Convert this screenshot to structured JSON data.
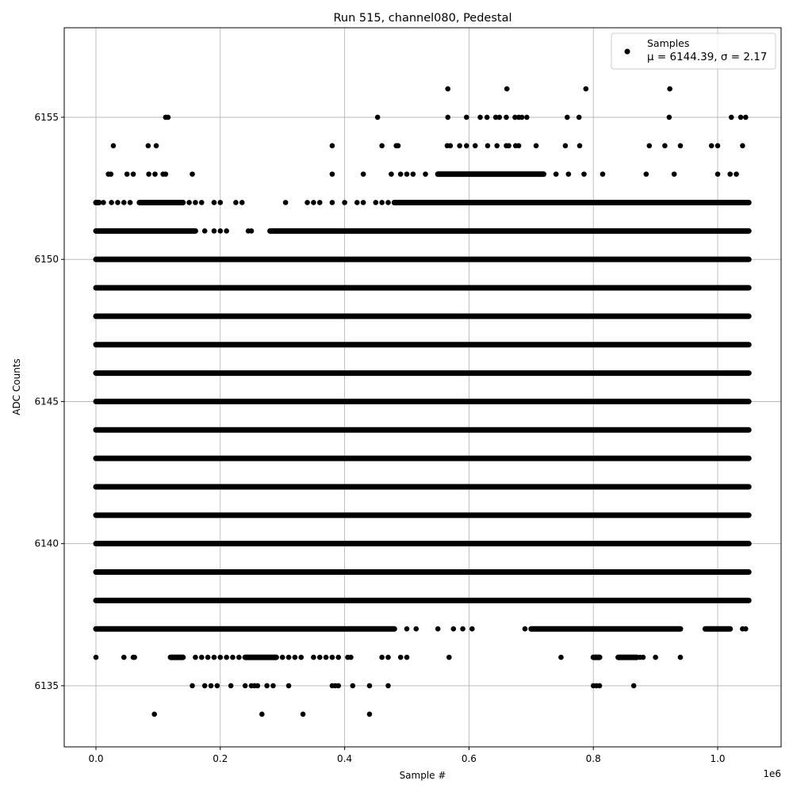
{
  "chart_data": {
    "type": "scatter",
    "title": "Run 515, channel080, Pedestal",
    "xlabel": "Sample #",
    "ylabel": "ADC Counts",
    "x_scale_label": "1e6",
    "x_unit_multiplier": 1000000,
    "xlim": [
      -0.051,
      1.102
    ],
    "ylim": [
      6132.85,
      6158.15
    ],
    "xticks": [
      0.0,
      0.2,
      0.4,
      0.6,
      0.8,
      1.0
    ],
    "xtick_labels": [
      "0.0",
      "0.2",
      "0.4",
      "0.6",
      "0.8",
      "1.0"
    ],
    "yticks": [
      6135,
      6140,
      6145,
      6150,
      6155
    ],
    "ytick_labels": [
      "6135",
      "6140",
      "6145",
      "6150",
      "6155"
    ],
    "grid": true,
    "legend": {
      "placement": "top-right",
      "label": "Samples",
      "stats": "μ = 6144.39, σ = 2.17"
    },
    "marker_color": "#000000",
    "series": [
      {
        "name": "Samples",
        "note": "x in units of 1e6 samples; dense runs given as [start,end] segments, isolated samples as points",
        "levels": [
          {
            "y": 6156,
            "segments": [],
            "points": [
              0.566,
              0.661,
              0.788,
              0.923
            ]
          },
          {
            "y": 6155,
            "segments": [],
            "points": [
              0.112,
              0.116,
              0.453,
              0.566,
              0.596,
              0.618,
              0.629,
              0.643,
              0.649,
              0.66,
              0.674,
              0.68,
              0.685,
              0.693,
              0.758,
              0.777,
              0.922,
              1.022,
              1.037,
              1.045
            ]
          },
          {
            "y": 6154,
            "segments": [],
            "points": [
              0.028,
              0.084,
              0.097,
              0.38,
              0.46,
              0.483,
              0.486,
              0.565,
              0.57,
              0.585,
              0.596,
              0.61,
              0.63,
              0.645,
              0.66,
              0.664,
              0.675,
              0.68,
              0.708,
              0.755,
              0.778,
              0.89,
              0.915,
              0.94,
              0.99,
              1.0,
              1.04
            ]
          },
          {
            "y": 6153,
            "segments": [
              [
                0.55,
                0.72
              ]
            ],
            "points": [
              0.02,
              0.024,
              0.05,
              0.06,
              0.085,
              0.095,
              0.108,
              0.112,
              0.155,
              0.38,
              0.43,
              0.475,
              0.49,
              0.5,
              0.51,
              0.53,
              0.74,
              0.76,
              0.785,
              0.815,
              0.885,
              0.93,
              1.0,
              1.02,
              1.03
            ]
          },
          {
            "y": 6152,
            "segments": [
              [
                0.0,
                0.005
              ],
              [
                0.07,
                0.14
              ],
              [
                0.48,
                1.05
              ]
            ],
            "points": [
              0.012,
              0.025,
              0.035,
              0.045,
              0.055,
              0.15,
              0.16,
              0.17,
              0.19,
              0.2,
              0.225,
              0.235,
              0.305,
              0.34,
              0.35,
              0.36,
              0.38,
              0.4,
              0.42,
              0.43,
              0.45,
              0.46,
              0.47
            ]
          },
          {
            "y": 6151,
            "segments": [
              [
                0.0,
                0.16
              ],
              [
                0.28,
                1.05
              ]
            ],
            "points": [
              0.175,
              0.19,
              0.2,
              0.21,
              0.245,
              0.25
            ]
          },
          {
            "y": 6150,
            "segments": [
              [
                0.0,
                1.05
              ]
            ],
            "points": []
          },
          {
            "y": 6149,
            "segments": [
              [
                0.0,
                1.05
              ]
            ],
            "points": []
          },
          {
            "y": 6148,
            "segments": [
              [
                0.0,
                1.05
              ]
            ],
            "points": []
          },
          {
            "y": 6147,
            "segments": [
              [
                0.0,
                1.05
              ]
            ],
            "points": []
          },
          {
            "y": 6146,
            "segments": [
              [
                0.0,
                1.05
              ]
            ],
            "points": []
          },
          {
            "y": 6145,
            "segments": [
              [
                0.0,
                1.05
              ]
            ],
            "points": []
          },
          {
            "y": 6144,
            "segments": [
              [
                0.0,
                1.05
              ]
            ],
            "points": []
          },
          {
            "y": 6143,
            "segments": [
              [
                0.0,
                1.05
              ]
            ],
            "points": []
          },
          {
            "y": 6142,
            "segments": [
              [
                0.0,
                1.05
              ]
            ],
            "points": []
          },
          {
            "y": 6141,
            "segments": [
              [
                0.0,
                1.05
              ]
            ],
            "points": []
          },
          {
            "y": 6140,
            "segments": [
              [
                0.0,
                1.05
              ]
            ],
            "points": []
          },
          {
            "y": 6139,
            "segments": [
              [
                0.0,
                1.05
              ]
            ],
            "points": []
          },
          {
            "y": 6138,
            "segments": [
              [
                0.0,
                1.05
              ]
            ],
            "points": []
          },
          {
            "y": 6137,
            "segments": [
              [
                0.0,
                0.48
              ],
              [
                0.7,
                0.94
              ],
              [
                0.98,
                1.02
              ]
            ],
            "points": [
              0.5,
              0.515,
              0.55,
              0.575,
              0.59,
              0.605,
              0.69,
              1.04,
              1.045
            ]
          },
          {
            "y": 6136,
            "segments": [
              [
                0.12,
                0.14
              ],
              [
                0.24,
                0.29
              ],
              [
                0.8,
                0.81
              ],
              [
                0.84,
                0.87
              ]
            ],
            "points": [
              0.0,
              0.045,
              0.06,
              0.062,
              0.16,
              0.17,
              0.18,
              0.19,
              0.2,
              0.21,
              0.22,
              0.23,
              0.3,
              0.31,
              0.32,
              0.33,
              0.35,
              0.36,
              0.37,
              0.38,
              0.39,
              0.405,
              0.41,
              0.46,
              0.47,
              0.49,
              0.5,
              0.568,
              0.748,
              0.875,
              0.88,
              0.9,
              0.94
            ]
          },
          {
            "y": 6135,
            "segments": [],
            "points": [
              0.155,
              0.175,
              0.185,
              0.195,
              0.217,
              0.24,
              0.25,
              0.255,
              0.26,
              0.275,
              0.285,
              0.31,
              0.38,
              0.385,
              0.39,
              0.413,
              0.44,
              0.47,
              0.8,
              0.805,
              0.81,
              0.865
            ]
          },
          {
            "y": 6134,
            "segments": [],
            "points": [
              0.094,
              0.267,
              0.333,
              0.44
            ]
          }
        ]
      }
    ]
  }
}
